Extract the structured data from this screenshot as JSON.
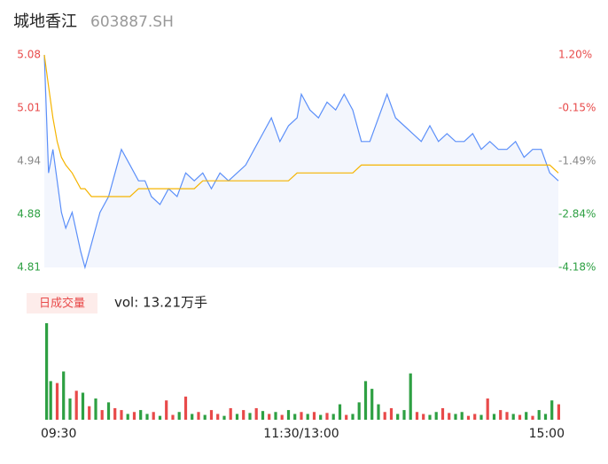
{
  "chart_data": [
    {
      "type": "line",
      "title": "城地香江",
      "subtitle": "603887.SH",
      "x": [
        0,
        2,
        4,
        6,
        8,
        10,
        13,
        17,
        19,
        22,
        26,
        30,
        33,
        36,
        40,
        44,
        47,
        50,
        54,
        58,
        62,
        66,
        70,
        74,
        78,
        82,
        86,
        90,
        94,
        98,
        102,
        106,
        110,
        114,
        118,
        120,
        124,
        128,
        132,
        136,
        140,
        144,
        148,
        152,
        156,
        160,
        164,
        168,
        172,
        176,
        180,
        184,
        188,
        192,
        196,
        200,
        204,
        208,
        212,
        216,
        220,
        224,
        228,
        232,
        236,
        240
      ],
      "xlim": [
        0,
        240
      ],
      "series": [
        {
          "color": "#5b8ff9",
          "values": [
            5.08,
            4.93,
            4.96,
            4.92,
            4.88,
            4.86,
            4.88,
            4.83,
            4.81,
            4.84,
            4.88,
            4.9,
            4.93,
            4.96,
            4.94,
            4.92,
            4.92,
            4.9,
            4.89,
            4.91,
            4.9,
            4.93,
            4.92,
            4.93,
            4.91,
            4.93,
            4.92,
            4.93,
            4.94,
            4.96,
            4.98,
            5.0,
            4.97,
            4.99,
            5.0,
            5.03,
            5.01,
            5.0,
            5.02,
            5.01,
            5.03,
            5.01,
            4.97,
            4.97,
            5.0,
            5.03,
            5.0,
            4.99,
            4.98,
            4.97,
            4.99,
            4.97,
            4.98,
            4.97,
            4.97,
            4.98,
            4.96,
            4.97,
            4.96,
            4.96,
            4.97,
            4.95,
            4.96,
            4.96,
            4.93,
            4.92
          ]
        },
        {
          "color": "#f5b400",
          "values": [
            5.08,
            5.04,
            5.0,
            4.97,
            4.95,
            4.94,
            4.93,
            4.91,
            4.91,
            4.9,
            4.9,
            4.9,
            4.9,
            4.9,
            4.9,
            4.91,
            4.91,
            4.91,
            4.91,
            4.91,
            4.91,
            4.91,
            4.91,
            4.92,
            4.92,
            4.92,
            4.92,
            4.92,
            4.92,
            4.92,
            4.92,
            4.92,
            4.92,
            4.92,
            4.93,
            4.93,
            4.93,
            4.93,
            4.93,
            4.93,
            4.93,
            4.93,
            4.94,
            4.94,
            4.94,
            4.94,
            4.94,
            4.94,
            4.94,
            4.94,
            4.94,
            4.94,
            4.94,
            4.94,
            4.94,
            4.94,
            4.94,
            4.94,
            4.94,
            4.94,
            4.94,
            4.94,
            4.94,
            4.94,
            4.94,
            4.93
          ]
        }
      ],
      "ylim": [
        4.81,
        5.08
      ],
      "yticks": [
        5.08,
        {
          "value": 5.0125,
          "label": "5.01"
        },
        {
          "value": 4.945,
          "label": "4.94"
        },
        {
          "value": 4.8775,
          "label": "4.88"
        },
        4.81
      ],
      "ytick_colors": [
        "#e84a4a",
        "#e84a4a",
        "#888888",
        "#2ea043",
        "#2ea043"
      ],
      "y2lim": [
        -4.18,
        1.2
      ],
      "y2ticks": [
        {
          "value": 1.2,
          "label": "1.20%"
        },
        {
          "value": -0.145,
          "label": "-0.15%"
        },
        {
          "value": -1.49,
          "label": "-1.49%"
        },
        {
          "value": -2.835,
          "label": "-2.84%"
        },
        {
          "value": -4.18,
          "label": "-4.18%"
        }
      ],
      "area_color": "#f3f6fd"
    },
    {
      "type": "bar",
      "legend": "日成交量",
      "annotation": "vol: 13.21万手",
      "x": [
        0,
        3,
        6,
        9,
        12,
        15,
        18,
        21,
        24,
        27,
        30,
        33,
        36,
        39,
        42,
        45,
        48,
        51,
        54,
        57,
        60,
        63,
        66,
        69,
        72,
        75,
        78,
        81,
        84,
        87,
        90,
        93,
        96,
        99,
        102,
        105,
        108,
        111,
        114,
        117,
        120,
        123,
        126,
        129,
        132,
        135,
        138,
        141,
        144,
        147,
        150,
        153,
        156,
        159,
        162,
        165,
        168,
        171,
        174,
        177,
        180,
        183,
        186,
        189,
        192,
        195,
        198,
        201,
        204,
        207,
        210,
        213,
        216,
        219,
        222,
        225,
        228,
        231,
        234,
        237,
        240
      ],
      "values": [
        100,
        40,
        38,
        50,
        22,
        30,
        28,
        14,
        22,
        10,
        18,
        12,
        10,
        6,
        8,
        10,
        6,
        8,
        4,
        20,
        5,
        8,
        24,
        6,
        8,
        5,
        10,
        6,
        4,
        12,
        6,
        10,
        7,
        12,
        9,
        6,
        8,
        5,
        10,
        6,
        8,
        6,
        8,
        5,
        7,
        6,
        16,
        5,
        6,
        18,
        40,
        32,
        16,
        8,
        12,
        6,
        10,
        48,
        8,
        6,
        5,
        8,
        12,
        7,
        6,
        8,
        4,
        6,
        5,
        22,
        6,
        10,
        8,
        6,
        5,
        8,
        4,
        10,
        6,
        20,
        16
      ],
      "up": [
        false,
        false,
        true,
        false,
        false,
        true,
        false,
        true,
        false,
        true,
        false,
        true,
        true,
        false,
        true,
        false,
        false,
        true,
        false,
        true,
        true,
        false,
        true,
        false,
        true,
        false,
        true,
        true,
        false,
        true,
        false,
        true,
        false,
        true,
        false,
        true,
        false,
        true,
        false,
        false,
        true,
        false,
        true,
        false,
        true,
        false,
        false,
        true,
        false,
        false,
        false,
        false,
        false,
        true,
        true,
        false,
        false,
        false,
        true,
        true,
        false,
        false,
        true,
        true,
        false,
        false,
        true,
        true,
        false,
        true,
        false,
        true,
        true,
        false,
        true,
        false,
        true,
        false,
        false,
        false,
        true
      ],
      "up_color": "#e84a4a",
      "down_color": "#2ea043",
      "xlim": [
        0,
        240
      ],
      "ylim": [
        0,
        100
      ],
      "xticks": [
        {
          "value": 0,
          "label": "09:30"
        },
        {
          "value": 120,
          "label": "11:30/13:00"
        },
        {
          "value": 240,
          "label": "15:00"
        }
      ]
    }
  ]
}
